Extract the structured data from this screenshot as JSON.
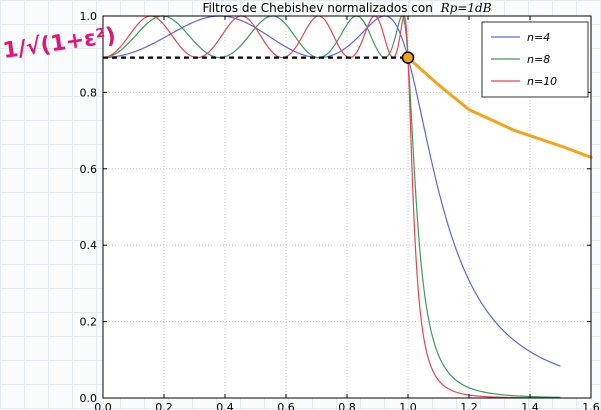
{
  "chart_data": {
    "type": "line",
    "title": "Filtros de Chebishev normalizados con",
    "title_math": "Rp=1dB",
    "xlabel": "",
    "ylabel": "",
    "xlim": [
      0.0,
      1.6
    ],
    "ylim": [
      0.0,
      1.0
    ],
    "x_ticks": [
      "0.0",
      "0.2",
      "0.4",
      "0.6",
      "0.8",
      "1.0",
      "1.2",
      "1.4",
      "1.6"
    ],
    "y_ticks": [
      "0.0",
      "0.2",
      "0.4",
      "0.6",
      "0.8",
      "1.0"
    ],
    "grid": true,
    "legend_position": "top-right",
    "ripple_db": 1,
    "passband_edge": 1.0,
    "series": [
      {
        "name": "n=4",
        "order": 4,
        "color": "#5d63f3",
        "x_max": 1.5
      },
      {
        "name": "n=8",
        "order": 8,
        "color": "#3d9b5b",
        "x_max": 1.5
      },
      {
        "name": "n=10",
        "order": 10,
        "color": "#e8454e",
        "x_max": 1.5
      }
    ],
    "annotations": {
      "ripple_level": 0.891,
      "ripple_line_color": "#000000",
      "marker_point": [
        1.0,
        0.891
      ],
      "highlight_color": "#f6a21a",
      "highlight_curve": [
        [
          1.0,
          0.891
        ],
        [
          1.1,
          0.82
        ],
        [
          1.2,
          0.755
        ],
        [
          1.35,
          0.7
        ],
        [
          1.5,
          0.66
        ],
        [
          1.6,
          0.63
        ]
      ],
      "handwritten_note": "1/√(1+ε²)",
      "note_color": "#e0147a"
    }
  }
}
